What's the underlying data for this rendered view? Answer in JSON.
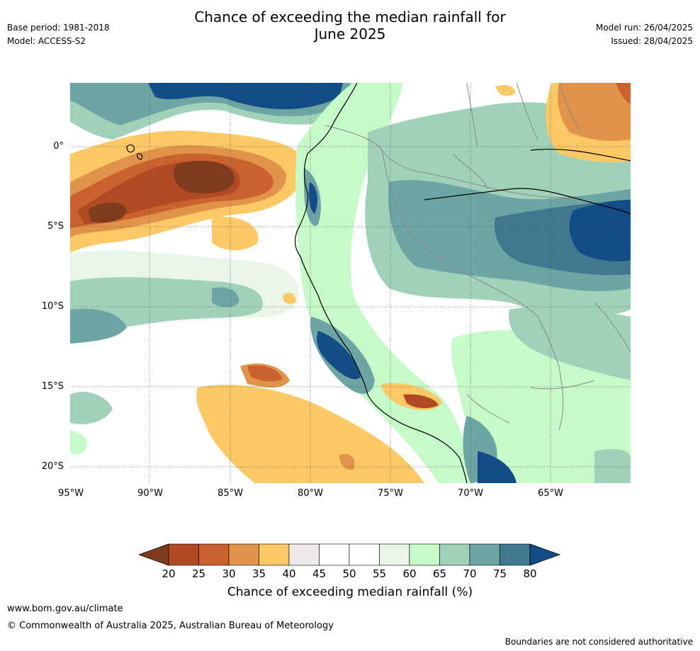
{
  "header": {
    "title_line1": "Chance of exceeding the median rainfall for",
    "title_line2": "June 2025",
    "base_period": "Base period: 1981-2018",
    "model": "Model: ACCESS-S2",
    "model_run": "Model run: 26/04/2025",
    "issued": "Issued: 28/04/2025"
  },
  "axes": {
    "lon_labels": [
      "95°W",
      "90°W",
      "85°W",
      "80°W",
      "75°W",
      "70°W",
      "65°W"
    ],
    "lat_labels": [
      "0°",
      "5°S",
      "10°S",
      "15°S",
      "20°S"
    ]
  },
  "colorbar": {
    "ticks": [
      "20",
      "25",
      "30",
      "35",
      "40",
      "45",
      "50",
      "55",
      "60",
      "65",
      "70",
      "75",
      "80"
    ],
    "colors": [
      "#7f3b1e",
      "#b04a25",
      "#c9622f",
      "#e2934a",
      "#fdc966",
      "#eeeae6",
      "#ffffff",
      "#ffffff",
      "#e9f5e9",
      "#c6fbc9",
      "#9fd2b9",
      "#6da4a4",
      "#40788f",
      "#134c87"
    ],
    "label": "Chance of exceeding median rainfall (%)"
  },
  "footer": {
    "website": "www.bom.gov.au/climate",
    "copyright": "© Commonwealth of Australia 2025, Australian Bureau of Meteorology",
    "disclaimer": "Boundaries are not considered authoritative"
  }
}
